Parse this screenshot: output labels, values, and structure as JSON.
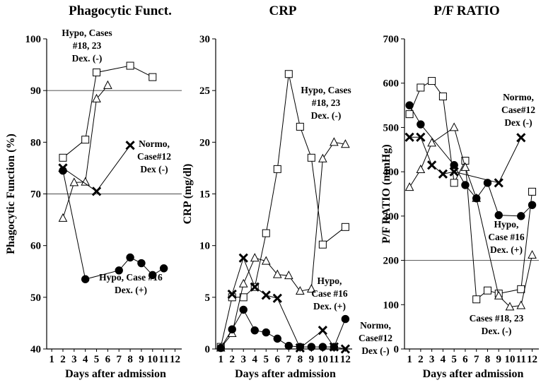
{
  "chart_data": [
    {
      "type": "line",
      "title": "Phagocytic Funct.",
      "xlabel": "Days after admission",
      "ylabel": "Phagocytic Function (%)",
      "ylim": [
        40,
        100
      ],
      "yticks": [
        40,
        50,
        60,
        70,
        80,
        90,
        100
      ],
      "xticks": [
        1,
        2,
        3,
        4,
        5,
        6,
        7,
        8,
        9,
        10,
        11,
        12
      ],
      "reference_lines": [
        70,
        90
      ],
      "series": [
        {
          "marker": "square",
          "points": [
            [
              2,
              77
            ],
            [
              4,
              80.5
            ],
            [
              5,
              93.5
            ],
            [
              8,
              94.8
            ],
            [
              10,
              92.6
            ]
          ]
        },
        {
          "marker": "triangle",
          "points": [
            [
              2,
              65.3
            ],
            [
              3,
              72.2
            ],
            [
              4,
              72.3
            ],
            [
              5,
              88.4
            ],
            [
              6,
              91
            ]
          ]
        },
        {
          "marker": "cross",
          "points": [
            [
              2,
              75
            ],
            [
              5,
              70.5
            ],
            [
              8,
              79.4
            ]
          ]
        },
        {
          "marker": "dot",
          "points": [
            [
              2,
              74.5
            ],
            [
              4,
              53.5
            ],
            [
              7,
              55.2
            ],
            [
              8,
              57.7
            ],
            [
              9,
              56.6
            ],
            [
              10,
              54.3
            ],
            [
              11,
              55.6
            ]
          ]
        }
      ],
      "annotations": [
        {
          "lines": [
            "Hypo, Cases",
            "#18, 23",
            "Dex. (-)"
          ]
        },
        {
          "lines": [
            "Normo,",
            "Case#12",
            "Dex (-)"
          ]
        },
        {
          "lines": [
            "Hypo, Case #16",
            "Dex. (+)"
          ]
        }
      ]
    },
    {
      "type": "line",
      "title": "CRP",
      "xlabel": "Days after admission",
      "ylabel": "CRP (mg/dl)",
      "ylim": [
        0,
        30
      ],
      "yticks": [
        0,
        5,
        10,
        15,
        20,
        25,
        30
      ],
      "xticks": [
        1,
        2,
        3,
        4,
        5,
        6,
        7,
        8,
        9,
        10,
        11,
        12
      ],
      "reference_lines": [],
      "series": [
        {
          "marker": "square",
          "points": [
            [
              1,
              0.2
            ],
            [
              2,
              5
            ],
            [
              3,
              5
            ],
            [
              4,
              6
            ],
            [
              5,
              11.2
            ],
            [
              6,
              17.4
            ],
            [
              7,
              26.6
            ],
            [
              8,
              21.5
            ],
            [
              9,
              18.5
            ],
            [
              10,
              10.1
            ],
            [
              12,
              11.8
            ]
          ]
        },
        {
          "marker": "triangle",
          "points": [
            [
              1,
              0.1
            ],
            [
              2,
              1.5
            ],
            [
              3,
              6.3
            ],
            [
              4,
              8.8
            ],
            [
              5,
              8.5
            ],
            [
              6,
              7.2
            ],
            [
              7,
              7.1
            ],
            [
              8,
              5.6
            ],
            [
              9,
              5.8
            ],
            [
              10,
              18.4
            ],
            [
              11,
              20
            ],
            [
              12,
              19.8
            ]
          ]
        },
        {
          "marker": "cross",
          "points": [
            [
              2,
              5.3
            ],
            [
              3,
              8.8
            ],
            [
              4,
              6
            ],
            [
              5,
              5.2
            ],
            [
              6,
              4.9
            ],
            [
              8,
              0.1
            ],
            [
              10,
              1.8
            ],
            [
              11,
              0.2
            ],
            [
              12,
              0
            ]
          ]
        },
        {
          "marker": "dot",
          "points": [
            [
              1,
              0.1
            ],
            [
              2,
              1.9
            ],
            [
              3,
              3.8
            ],
            [
              4,
              1.8
            ],
            [
              5,
              1.6
            ],
            [
              6,
              1
            ],
            [
              7,
              0.3
            ],
            [
              8,
              0.2
            ],
            [
              9,
              0.2
            ],
            [
              10,
              0.2
            ],
            [
              11,
              0.2
            ],
            [
              12,
              2.9
            ]
          ]
        }
      ],
      "annotations": [
        {
          "lines": [
            "Hypo, Cases",
            "#18, 23",
            "Dex. (-)"
          ]
        },
        {
          "lines": [
            "Hypo,",
            "Case #16",
            "Dex. (+)"
          ]
        },
        {
          "lines": [
            "Normo,",
            "Case#12",
            "Dex (-)"
          ]
        }
      ]
    },
    {
      "type": "line",
      "title": "P/F RATIO",
      "xlabel": "Days after admission",
      "ylabel": "P/F RATIO (mmHg)",
      "ylim": [
        0,
        700
      ],
      "yticks": [
        0,
        100,
        200,
        300,
        400,
        500,
        600,
        700
      ],
      "xticks": [
        1,
        2,
        3,
        4,
        5,
        6,
        7,
        8,
        9,
        10,
        11,
        12
      ],
      "reference_lines": [
        200
      ],
      "series": [
        {
          "marker": "square",
          "points": [
            [
              1,
              530
            ],
            [
              2,
              590
            ],
            [
              3,
              605
            ],
            [
              4,
              570
            ],
            [
              5,
              375
            ],
            [
              6,
              425
            ],
            [
              7,
              112
            ],
            [
              8,
              132
            ],
            [
              9,
              125
            ],
            [
              11,
              135
            ],
            [
              12,
              355
            ]
          ]
        },
        {
          "marker": "triangle",
          "points": [
            [
              1,
              365
            ],
            [
              2,
              405
            ],
            [
              3,
              465
            ],
            [
              5,
              500
            ],
            [
              6,
              410
            ],
            [
              7,
              340
            ],
            [
              9,
              120
            ],
            [
              10,
              95
            ],
            [
              11,
              98
            ],
            [
              12,
              212
            ]
          ]
        },
        {
          "marker": "cross",
          "points": [
            [
              1,
              478
            ],
            [
              2,
              478
            ],
            [
              3,
              415
            ],
            [
              4,
              395
            ],
            [
              5,
              400
            ],
            [
              9,
              375
            ],
            [
              11,
              477
            ]
          ]
        },
        {
          "marker": "dot",
          "points": [
            [
              1,
              550
            ],
            [
              2,
              507
            ],
            [
              5,
              415
            ],
            [
              6,
              370
            ],
            [
              7,
              340
            ],
            [
              8,
              375
            ],
            [
              9,
              302
            ],
            [
              11,
              300
            ],
            [
              12,
              325
            ]
          ]
        }
      ],
      "annotations": [
        {
          "lines": [
            "Normo,",
            "Case#12",
            "Dex (-)"
          ]
        },
        {
          "lines": [
            "Hypo,",
            "Case #16",
            "Dex. (+)"
          ]
        },
        {
          "lines": [
            "Cases #18, 23",
            "Dex. (-)"
          ]
        }
      ]
    }
  ]
}
